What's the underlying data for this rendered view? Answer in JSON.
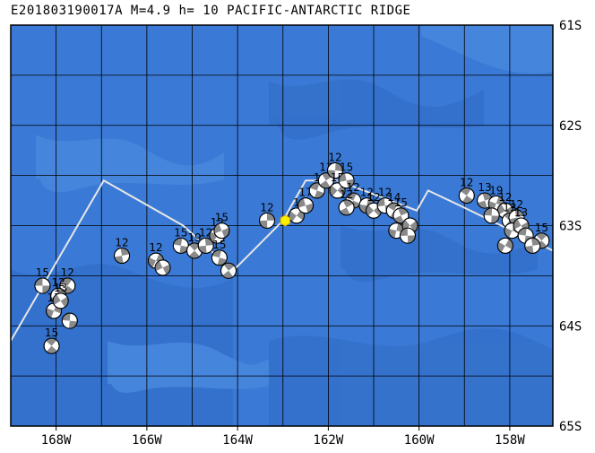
{
  "title": "E201803190017A M=4.9 h= 10 PACIFIC-ANTARCTIC RIDGE",
  "colors": {
    "ocean": "#3a7ad6",
    "ocean_deep": "#2f6bc4",
    "ocean_light": "#4e8ee0",
    "grid": "#000000",
    "plate_boundary": "#e6e6e6",
    "epicenter": "#ffee00"
  },
  "lat_labels": [
    "61S",
    "62S",
    "63S",
    "64S",
    "65S"
  ],
  "lon_labels": [
    "168W",
    "166W",
    "164W",
    "162W",
    "160W",
    "158W"
  ],
  "lat_range": [
    -65,
    -61
  ],
  "lon_range": [
    -169,
    -157.05
  ],
  "epicenter": {
    "lon": -162.95,
    "lat": -62.95
  },
  "plate_boundary": [
    [
      -169.0,
      -64.15
    ],
    [
      -166.95,
      -62.55
    ],
    [
      -165.2,
      -63.0
    ],
    [
      -164.1,
      -63.45
    ],
    [
      -163.0,
      -62.95
    ],
    [
      -162.5,
      -62.55
    ],
    [
      -161.8,
      -62.55
    ],
    [
      -160.05,
      -62.85
    ],
    [
      -159.8,
      -62.65
    ],
    [
      -159.1,
      -62.8
    ],
    [
      -157.05,
      -63.25
    ]
  ],
  "events": [
    {
      "lon": -168.3,
      "lat": -63.6,
      "label": "15"
    },
    {
      "lon": -167.75,
      "lat": -63.6,
      "label": "12"
    },
    {
      "lon": -167.95,
      "lat": -63.7,
      "label": "12"
    },
    {
      "lon": -168.05,
      "lat": -63.85,
      "label": "17"
    },
    {
      "lon": -167.9,
      "lat": -63.75,
      "label": "13"
    },
    {
      "lon": -167.7,
      "lat": -63.95,
      "label": ""
    },
    {
      "lon": -168.1,
      "lat": -64.2,
      "label": "15"
    },
    {
      "lon": -166.55,
      "lat": -63.3,
      "label": "12"
    },
    {
      "lon": -165.8,
      "lat": -63.35,
      "label": "12"
    },
    {
      "lon": -165.65,
      "lat": -63.42,
      "label": ""
    },
    {
      "lon": -165.25,
      "lat": -63.2,
      "label": "15"
    },
    {
      "lon": -164.95,
      "lat": -63.25,
      "label": "19"
    },
    {
      "lon": -164.7,
      "lat": -63.2,
      "label": "12"
    },
    {
      "lon": -164.45,
      "lat": -63.1,
      "label": "12"
    },
    {
      "lon": -164.35,
      "lat": -63.05,
      "label": "15"
    },
    {
      "lon": -164.4,
      "lat": -63.32,
      "label": "15"
    },
    {
      "lon": -164.2,
      "lat": -63.45,
      "label": ""
    },
    {
      "lon": -163.35,
      "lat": -62.95,
      "label": "12"
    },
    {
      "lon": -162.7,
      "lat": -62.9,
      "label": "1"
    },
    {
      "lon": -162.5,
      "lat": -62.8,
      "label": "17"
    },
    {
      "lon": -162.25,
      "lat": -62.65,
      "label": "1"
    },
    {
      "lon": -162.05,
      "lat": -62.55,
      "label": "13"
    },
    {
      "lon": -161.85,
      "lat": -62.45,
      "label": "12"
    },
    {
      "lon": -161.8,
      "lat": -62.65,
      "label": "15"
    },
    {
      "lon": -161.6,
      "lat": -62.55,
      "label": "15"
    },
    {
      "lon": -161.45,
      "lat": -62.75,
      "label": "12"
    },
    {
      "lon": -161.6,
      "lat": -62.82,
      "label": "12"
    },
    {
      "lon": -161.15,
      "lat": -62.8,
      "label": "12"
    },
    {
      "lon": -161.0,
      "lat": -62.85,
      "label": "12"
    },
    {
      "lon": -160.75,
      "lat": -62.8,
      "label": "12"
    },
    {
      "lon": -160.55,
      "lat": -62.85,
      "label": "14"
    },
    {
      "lon": -160.4,
      "lat": -62.9,
      "label": "15"
    },
    {
      "lon": -160.5,
      "lat": -63.05,
      "label": ""
    },
    {
      "lon": -160.2,
      "lat": -63.0,
      "label": ""
    },
    {
      "lon": -160.25,
      "lat": -63.1,
      "label": ""
    },
    {
      "lon": -158.95,
      "lat": -62.7,
      "label": "12"
    },
    {
      "lon": -158.55,
      "lat": -62.75,
      "label": "13"
    },
    {
      "lon": -158.3,
      "lat": -62.78,
      "label": "19"
    },
    {
      "lon": -158.1,
      "lat": -62.85,
      "label": "12"
    },
    {
      "lon": -158.4,
      "lat": -62.9,
      "label": ""
    },
    {
      "lon": -158.0,
      "lat": -62.95,
      "label": "13"
    },
    {
      "lon": -157.85,
      "lat": -62.92,
      "label": "12"
    },
    {
      "lon": -157.95,
      "lat": -63.05,
      "label": ""
    },
    {
      "lon": -157.75,
      "lat": -63.0,
      "label": "13"
    },
    {
      "lon": -157.65,
      "lat": -63.1,
      "label": ""
    },
    {
      "lon": -157.3,
      "lat": -63.15,
      "label": "15"
    },
    {
      "lon": -157.5,
      "lat": -63.2,
      "label": ""
    },
    {
      "lon": -158.1,
      "lat": -63.2,
      "label": ""
    }
  ]
}
